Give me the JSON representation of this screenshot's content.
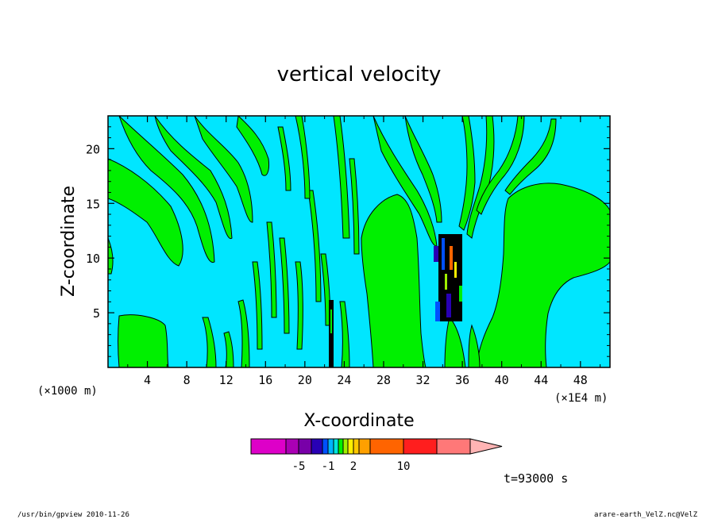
{
  "chart_data": {
    "type": "contour",
    "title": "vertical velocity",
    "xlabel": "X-coordinate",
    "ylabel": "Z-coordinate",
    "x_unit_left": "(×1000 m)",
    "x_unit_right": "(×1E4 m)",
    "xlim": [
      0,
      51
    ],
    "ylim": [
      0,
      23
    ],
    "x_ticks": [
      4,
      8,
      12,
      16,
      20,
      24,
      28,
      32,
      36,
      40,
      44,
      48
    ],
    "y_ticks": [
      5,
      10,
      15,
      20
    ],
    "time_label": "t=93000 s",
    "colorbar": {
      "levels": [
        -10,
        -5,
        -3,
        -2,
        -1,
        -0.5,
        0,
        0.5,
        1,
        2,
        3,
        5,
        10,
        15,
        20
      ],
      "colors": [
        "#dd00c8",
        "#aa00b4",
        "#7800a8",
        "#2800b4",
        "#0050ff",
        "#00b4ff",
        "#00e6dc",
        "#00f000",
        "#a0f000",
        "#fff000",
        "#ffc800",
        "#ffa000",
        "#ff6400",
        "#ff1e1e",
        "#ff7878",
        "#ffb4b4"
      ],
      "labels": [
        {
          "text": "-5",
          "level_index": 1
        },
        {
          "text": "-1",
          "level_index": 4
        },
        {
          "text": "2",
          "level_index": 9
        },
        {
          "text": "10",
          "level_index": 12
        }
      ]
    }
  },
  "footer": {
    "left": "/usr/bin/gpview  2010-11-26",
    "right": "arare-earth_VelZ.nc@VelZ"
  }
}
